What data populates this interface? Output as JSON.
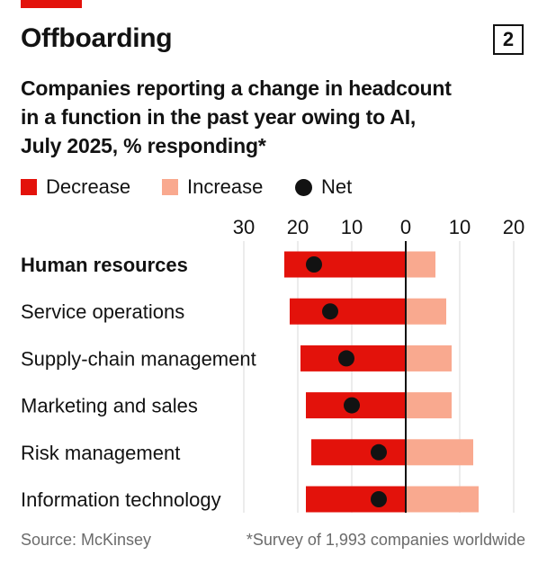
{
  "title": "Offboarding",
  "chart_number": "2",
  "subtitle_lines": [
    "Companies reporting a change in headcount",
    "in a function in the past year owing to AI,",
    "July 2025, % responding*"
  ],
  "legend": {
    "decrease": "Decrease",
    "increase": "Increase",
    "net": "Net"
  },
  "footer": {
    "source": "Source: McKinsey",
    "note": "*Survey of 1,993 companies worldwide"
  },
  "colors": {
    "accent": "#e3120b",
    "decrease": "#e3120b",
    "increase": "#f9a98f",
    "net": "#121212",
    "gridline": "#d9d9d9",
    "zero_line": "#121212"
  },
  "chart_data": {
    "type": "bar",
    "orientation": "horizontal",
    "x_ticks": [
      -30,
      -20,
      -10,
      0,
      10,
      20
    ],
    "x_tick_labels": [
      "30",
      "20",
      "10",
      "0",
      "10",
      "20"
    ],
    "xlim": [
      -30,
      20
    ],
    "categories": [
      "Human resources",
      "Service operations",
      "Supply-chain management",
      "Marketing and sales",
      "Risk management",
      "Information technology"
    ],
    "highlighted_category": "Human resources",
    "series": [
      {
        "name": "Decrease",
        "values": [
          22.5,
          21.5,
          19.5,
          18.5,
          17.5,
          18.5
        ]
      },
      {
        "name": "Increase",
        "values": [
          5.5,
          7.5,
          8.5,
          8.5,
          12.5,
          13.5
        ]
      },
      {
        "name": "Net",
        "values": [
          -17,
          -14,
          -11,
          -10,
          -5,
          -5
        ]
      }
    ],
    "grid": true
  }
}
